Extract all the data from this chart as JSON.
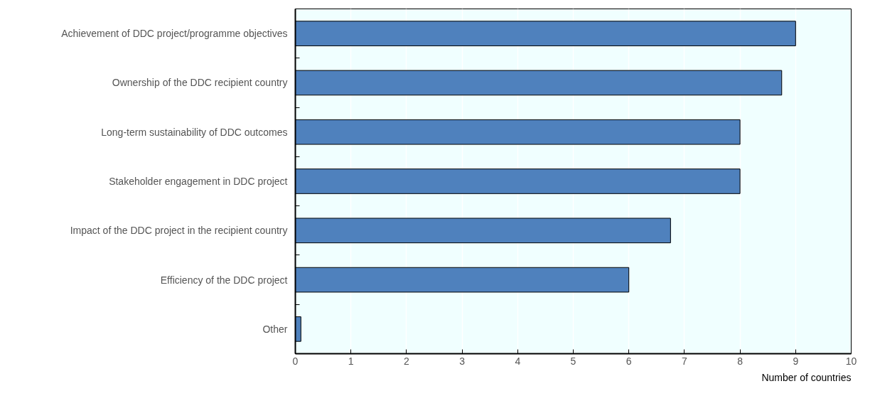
{
  "chart_data": {
    "type": "bar",
    "orientation": "horizontal",
    "categories": [
      "Achievement of DDC project/programme objectives",
      "Ownership of the DDC recipient country",
      "Long-term sustainability of DDC outcomes",
      "Stakeholder engagement in DDC project",
      "Impact of the DDC project in the recipient country",
      "Efficiency of the DDC project",
      "Other"
    ],
    "values": [
      9,
      8.75,
      8,
      8,
      6.75,
      6,
      0.1
    ],
    "color": "#4f81bd",
    "xlim": [
      0,
      10
    ],
    "xticks": [
      0,
      1,
      2,
      3,
      4,
      5,
      6,
      7,
      8,
      9,
      10
    ],
    "xlabel": "Number of countries",
    "grid": "x"
  }
}
